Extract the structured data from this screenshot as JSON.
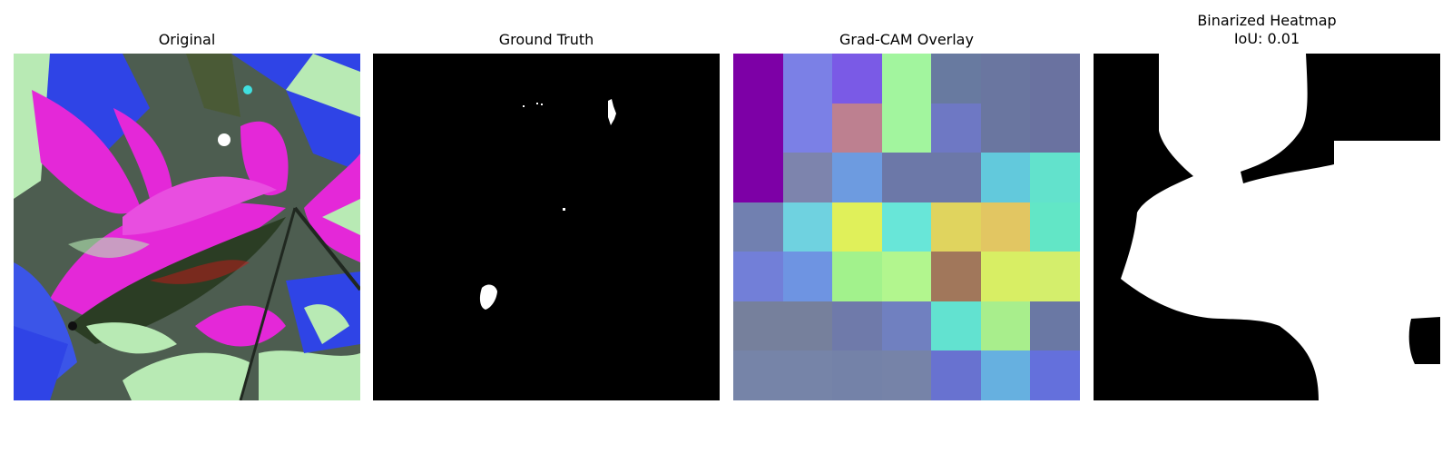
{
  "panels": {
    "original": {
      "title": "Original"
    },
    "ground_truth": {
      "title": "Ground Truth"
    },
    "gradcam": {
      "title": "Grad-CAM Overlay",
      "grid": [
        [
          "#7d00a6",
          "#7b80e6",
          "#7a5ae6",
          "#a2f59e",
          "#687aa0",
          "#6a76a0",
          "#6a72a0"
        ],
        [
          "#7d00a6",
          "#7b80e6",
          "#bd8090",
          "#a2f59e",
          "#6e78c4",
          "#6a76a0",
          "#6a72a0"
        ],
        [
          "#7d00a6",
          "#7d84ad",
          "#6d9be0",
          "#6c78a8",
          "#6c78a8",
          "#62c9dc",
          "#62e2cc"
        ],
        [
          "#7180b0",
          "#6fd2e0",
          "#e0f05a",
          "#68e6d8",
          "#e0d45e",
          "#e2c662",
          "#62e6c6"
        ],
        [
          "#727fd8",
          "#6e94e2",
          "#a2f28c",
          "#b2f68e",
          "#a1775b",
          "#d8ee64",
          "#d4ee6c"
        ],
        [
          "#76809c",
          "#76809c",
          "#6f7aaa",
          "#7080c0",
          "#62e2d0",
          "#a8ee8c",
          "#6a78a4"
        ],
        [
          "#7684a8",
          "#7684a8",
          "#7482a8",
          "#7683a8",
          "#6872d0",
          "#66b0e0",
          "#6470dc"
        ]
      ]
    },
    "binarized": {
      "title": "Binarized Heatmap\nIoU: 0.01"
    }
  }
}
